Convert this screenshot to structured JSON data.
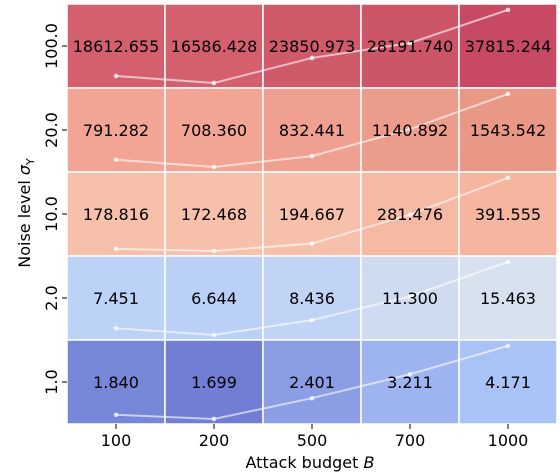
{
  "chart_data": {
    "type": "heatmap",
    "title": "",
    "xlabel": "Attack budget",
    "xlabel_symbol": "B",
    "ylabel": "Noise level",
    "ylabel_symbol": "σ",
    "ylabel_subscript": "Y",
    "x_categories": [
      "100",
      "200",
      "500",
      "700",
      "1000"
    ],
    "y_categories": [
      "100.0",
      "20.0",
      "10.0",
      "2.0",
      "1.0"
    ],
    "values": [
      [
        18612.655,
        16586.428,
        23850.973,
        28191.74,
        37815.244
      ],
      [
        791.282,
        708.36,
        832.441,
        1140.892,
        1543.542
      ],
      [
        178.816,
        172.468,
        194.667,
        281.476,
        391.555
      ],
      [
        7.451,
        6.644,
        8.436,
        11.3,
        15.463
      ],
      [
        1.84,
        1.699,
        2.401,
        3.211,
        4.171
      ]
    ],
    "value_labels": [
      [
        "18612.655",
        "16586.428",
        "23850.973",
        "28191.740",
        "37815.244"
      ],
      [
        "791.282",
        "708.360",
        "832.441",
        "1140.892",
        "1543.542"
      ],
      [
        "178.816",
        "172.468",
        "194.667",
        "281.476",
        "391.555"
      ],
      [
        "7.451",
        "6.644",
        "8.436",
        "11.300",
        "15.463"
      ],
      [
        "1.840",
        "1.699",
        "2.401",
        "3.211",
        "4.171"
      ]
    ],
    "cell_colors": [
      [
        "#d4606f",
        "#d4606f",
        "#cf5a6a",
        "#cc5568",
        "#c84964"
      ],
      [
        "#f2a595",
        "#f2a595",
        "#f0a090",
        "#ec9c8a",
        "#e99886"
      ],
      [
        "#f7c0ab",
        "#f7c0ab",
        "#f7c0ab",
        "#f5b9a4",
        "#f5b59f"
      ],
      [
        "#bdd2f7",
        "#bbd0f7",
        "#c1d4f6",
        "#cedbf1",
        "#d8e1ef"
      ],
      [
        "#7787d8",
        "#727ed3",
        "#8a9de5",
        "#9eb4f0",
        "#a9c3f6"
      ]
    ],
    "trend_line": "normalized row trend overlaid per row",
    "grid": false,
    "legend": "none"
  }
}
